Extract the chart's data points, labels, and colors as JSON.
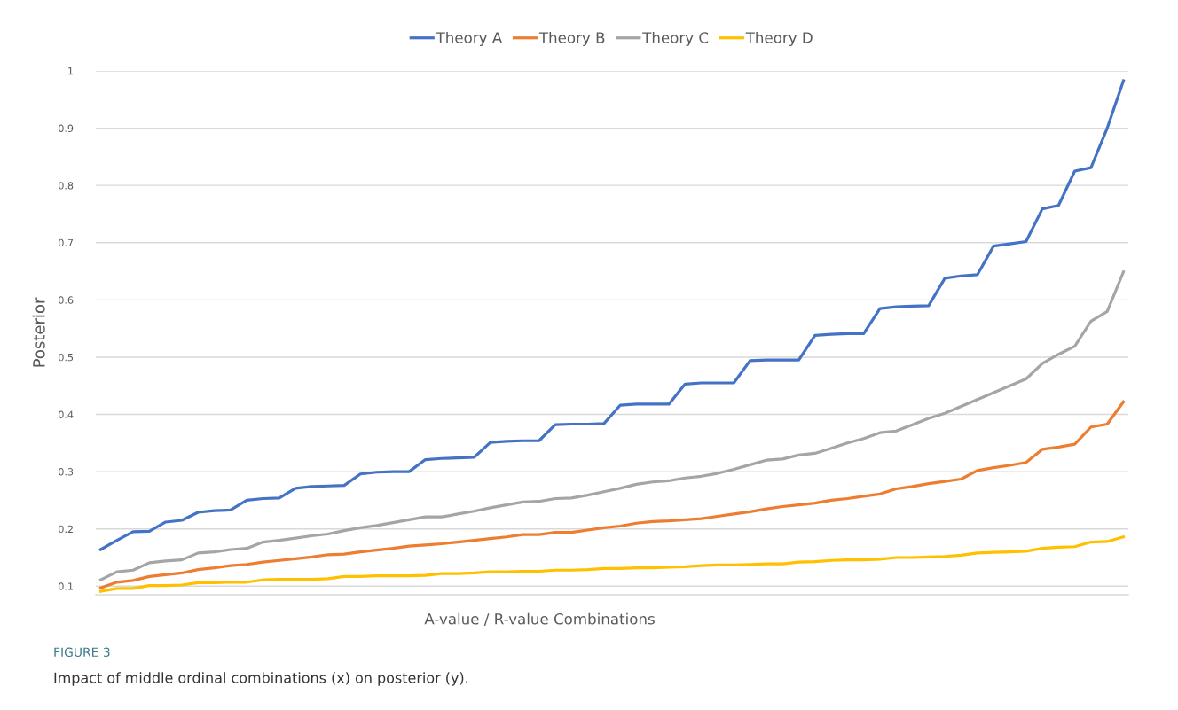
{
  "chart_data": {
    "type": "line",
    "ylabel": "Posterior",
    "xlabel": "A-value / R-value Combinations",
    "categories": [
      null,
      null,
      null,
      null,
      null,
      null,
      null,
      null,
      null,
      null,
      null,
      null,
      null,
      null,
      null,
      null,
      null,
      null,
      null,
      null,
      null,
      null,
      null,
      null,
      null,
      null,
      null,
      null,
      null,
      null,
      null,
      null,
      null,
      null,
      null,
      null,
      null,
      null,
      null,
      null,
      null,
      null,
      null,
      null,
      null,
      null,
      null,
      null,
      null,
      null,
      null,
      null,
      null,
      null,
      null,
      null,
      null,
      null,
      null,
      null,
      null,
      null,
      null,
      null
    ],
    "series": [
      {
        "name": "Theory A",
        "color": "#4472c4",
        "values": [
          0.164,
          0.18,
          0.195,
          0.196,
          0.212,
          0.215,
          0.229,
          0.232,
          0.233,
          0.25,
          0.253,
          0.254,
          0.271,
          0.274,
          0.275,
          0.276,
          0.296,
          0.299,
          0.3,
          0.3,
          0.321,
          0.323,
          0.324,
          0.325,
          0.351,
          0.353,
          0.354,
          0.354,
          0.382,
          0.383,
          0.383,
          0.384,
          0.416,
          0.418,
          0.418,
          0.418,
          0.453,
          0.455,
          0.455,
          0.455,
          0.494,
          0.495,
          0.495,
          0.495,
          0.538,
          0.54,
          0.541,
          0.541,
          0.585,
          0.588,
          0.589,
          0.59,
          0.638,
          0.642,
          0.644,
          0.694,
          0.698,
          0.702,
          0.759,
          0.765,
          0.825,
          0.831,
          0.9,
          0.983
        ]
      },
      {
        "name": "Theory B",
        "color": "#ed7d31",
        "values": [
          0.097,
          0.107,
          0.11,
          0.117,
          0.12,
          0.123,
          0.129,
          0.132,
          0.136,
          0.138,
          0.142,
          0.145,
          0.148,
          0.151,
          0.155,
          0.156,
          0.16,
          0.163,
          0.166,
          0.17,
          0.172,
          0.174,
          0.177,
          0.18,
          0.183,
          0.186,
          0.19,
          0.19,
          0.194,
          0.194,
          0.198,
          0.202,
          0.205,
          0.21,
          0.213,
          0.214,
          0.216,
          0.218,
          0.222,
          0.226,
          0.23,
          0.235,
          0.239,
          0.242,
          0.245,
          0.25,
          0.253,
          0.257,
          0.261,
          0.27,
          0.274,
          0.279,
          0.283,
          0.287,
          0.302,
          0.307,
          0.311,
          0.316,
          0.339,
          0.343,
          0.348,
          0.378,
          0.383,
          0.422
        ]
      },
      {
        "name": "Theory C",
        "color": "#a5a5a5",
        "values": [
          0.111,
          0.125,
          0.128,
          0.141,
          0.144,
          0.146,
          0.158,
          0.16,
          0.164,
          0.166,
          0.177,
          0.18,
          0.184,
          0.188,
          0.191,
          0.197,
          0.202,
          0.206,
          0.211,
          0.216,
          0.221,
          0.221,
          0.226,
          0.231,
          0.237,
          0.242,
          0.247,
          0.248,
          0.253,
          0.254,
          0.259,
          0.265,
          0.271,
          0.278,
          0.282,
          0.284,
          0.289,
          0.292,
          0.297,
          0.304,
          0.312,
          0.32,
          0.322,
          0.329,
          0.332,
          0.341,
          0.35,
          0.358,
          0.368,
          0.371,
          0.382,
          0.393,
          0.402,
          0.414,
          0.426,
          0.438,
          0.45,
          0.462,
          0.489,
          0.505,
          0.519,
          0.563,
          0.58,
          0.649
        ]
      },
      {
        "name": "Theory D",
        "color": "#ffc000",
        "values": [
          0.091,
          0.096,
          0.096,
          0.101,
          0.101,
          0.102,
          0.106,
          0.106,
          0.107,
          0.107,
          0.111,
          0.112,
          0.112,
          0.112,
          0.113,
          0.117,
          0.117,
          0.118,
          0.118,
          0.118,
          0.119,
          0.122,
          0.122,
          0.123,
          0.125,
          0.125,
          0.126,
          0.126,
          0.128,
          0.128,
          0.129,
          0.131,
          0.131,
          0.132,
          0.132,
          0.133,
          0.134,
          0.136,
          0.137,
          0.137,
          0.138,
          0.139,
          0.139,
          0.142,
          0.143,
          0.145,
          0.146,
          0.146,
          0.147,
          0.15,
          0.15,
          0.151,
          0.152,
          0.154,
          0.158,
          0.159,
          0.16,
          0.161,
          0.166,
          0.168,
          0.169,
          0.177,
          0.178,
          0.186
        ]
      }
    ],
    "ylim": [
      0.085,
      1.0
    ],
    "yticks": [
      0.1,
      0.2,
      0.3,
      0.4,
      0.5,
      0.6,
      0.7,
      0.8,
      0.9,
      1
    ],
    "tick_labels": "y",
    "grid": "y",
    "legend": "top",
    "marker": "none",
    "line_style": "solid",
    "annotations": [
      "FIGURE 3",
      "Impact of middle ordinal combinations (x) on posterior (y)."
    ]
  }
}
